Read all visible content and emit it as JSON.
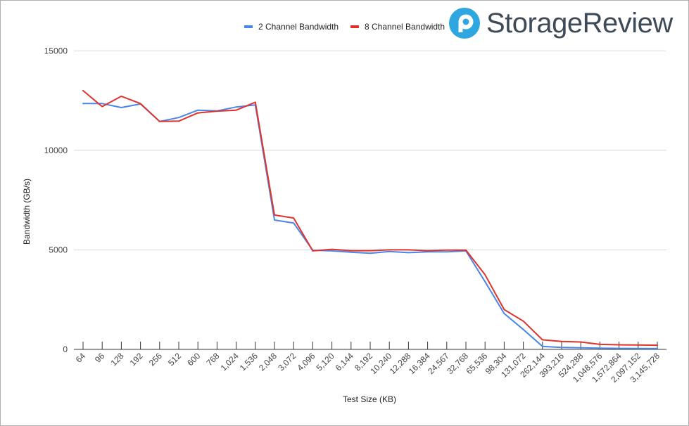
{
  "brand": {
    "name": "StorageReview",
    "accent": "#2ea7e0",
    "text_color": "#3d4a57",
    "icon": "storagereview-logo-icon"
  },
  "chart_data": {
    "type": "line",
    "title": "",
    "xlabel": "Test Size (KB)",
    "ylabel": "Bandwidth (GB/s)",
    "ylim": [
      0,
      16000
    ],
    "yticks": [
      0,
      5000,
      10000,
      15000
    ],
    "grid": true,
    "legend_position": "top-right",
    "categories": [
      "64",
      "96",
      "128",
      "192",
      "256",
      "512",
      "600",
      "768",
      "1,024",
      "1,536",
      "2,048",
      "3,072",
      "4,096",
      "5,120",
      "6,144",
      "8,192",
      "10,240",
      "12,288",
      "16,384",
      "24,567",
      "32,768",
      "65,536",
      "98,304",
      "131,072",
      "262,144",
      "393,216",
      "524,288",
      "1,048,576",
      "1,572,864",
      "2,097,152",
      "3,145,728"
    ],
    "series": [
      {
        "name": "2 Channel Bandwidth",
        "color": "#4a86e8",
        "values": [
          12350,
          12350,
          12150,
          12330,
          11450,
          11650,
          12020,
          11980,
          12180,
          12280,
          6500,
          6350,
          4980,
          4950,
          4880,
          4830,
          4920,
          4860,
          4900,
          4900,
          4950,
          3400,
          1800,
          1000,
          150,
          100,
          80,
          60,
          50,
          45,
          40
        ]
      },
      {
        "name": "8 Channel Bandwidth",
        "color": "#e0322b",
        "values": [
          13000,
          12200,
          12720,
          12350,
          11450,
          11470,
          11880,
          11970,
          12020,
          12420,
          6750,
          6600,
          4950,
          5030,
          4960,
          4960,
          5000,
          5000,
          4960,
          4990,
          4990,
          3750,
          2000,
          1420,
          480,
          400,
          370,
          250,
          230,
          220,
          210
        ]
      }
    ]
  }
}
